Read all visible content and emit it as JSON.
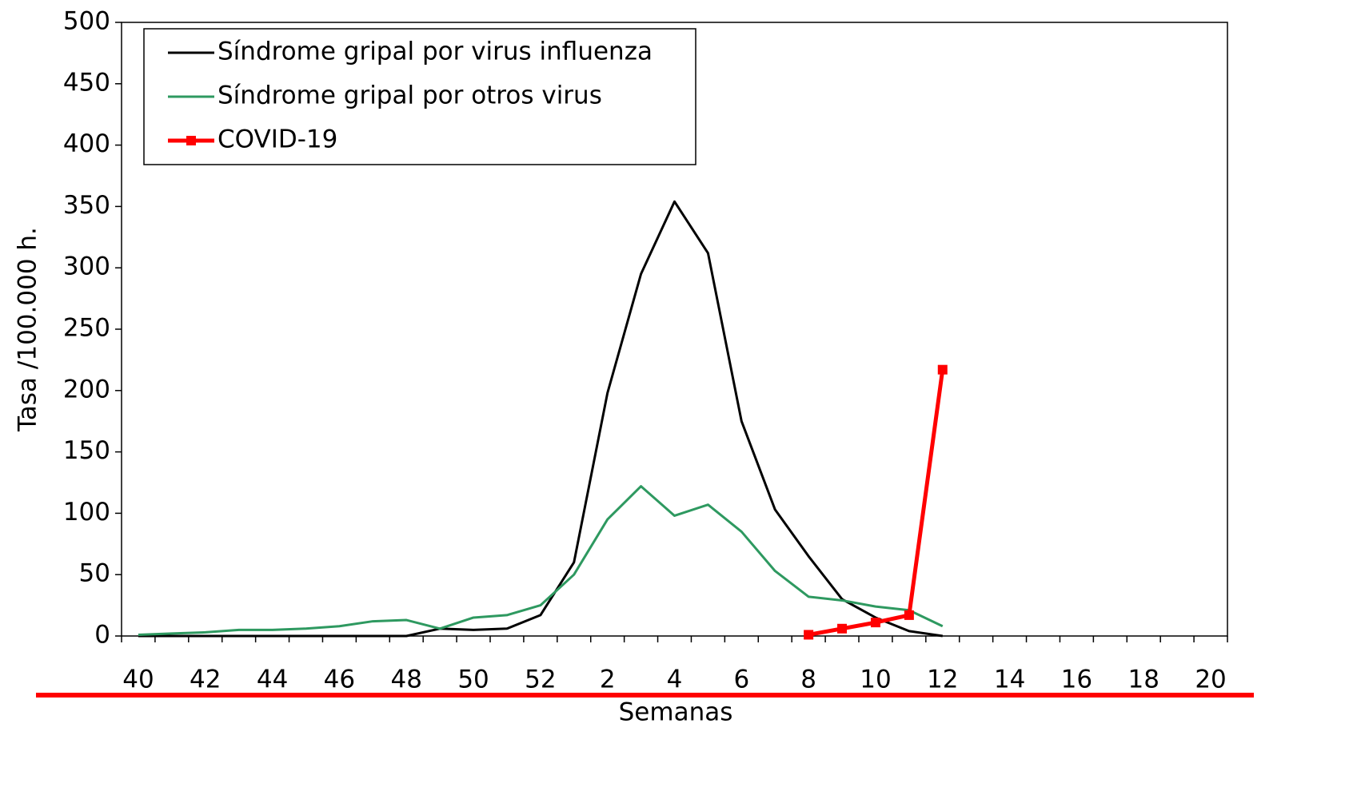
{
  "chart_data": {
    "type": "line",
    "xlabel": "Semanas",
    "ylabel": "Tasa /100.000 h.",
    "categories": [
      "40",
      null,
      "42",
      null,
      "44",
      null,
      "46",
      null,
      "48",
      null,
      "50",
      null,
      "52",
      null,
      "2",
      null,
      "4",
      null,
      "6",
      null,
      "8",
      null,
      "10",
      null,
      "12",
      null,
      "14",
      null,
      "16",
      null,
      "18",
      null,
      "20"
    ],
    "series": [
      {
        "name": "Síndrome gripal por virus influenza",
        "color": "#000000",
        "marker": false,
        "values": [
          0,
          0,
          0,
          0,
          0,
          0,
          0,
          0,
          0,
          6,
          5,
          6,
          17,
          60,
          198,
          295,
          354,
          312,
          175,
          103,
          65,
          30,
          15,
          4,
          0,
          null,
          null,
          null,
          null,
          null,
          null,
          null,
          null
        ]
      },
      {
        "name": "Síndrome gripal por otros virus",
        "color": "#2e9960",
        "marker": false,
        "values": [
          1,
          2,
          3,
          5,
          5,
          6,
          8,
          12,
          13,
          6,
          15,
          17,
          25,
          50,
          95,
          122,
          98,
          107,
          85,
          53,
          32,
          29,
          24,
          21,
          8,
          null,
          null,
          null,
          null,
          null,
          null,
          null,
          null
        ]
      },
      {
        "name": "COVID-19",
        "color": "#ff0000",
        "marker": true,
        "values": [
          null,
          null,
          null,
          null,
          null,
          null,
          null,
          null,
          null,
          null,
          null,
          null,
          null,
          null,
          null,
          null,
          null,
          null,
          null,
          null,
          1,
          6,
          11,
          17,
          217,
          null,
          null,
          null,
          null,
          null,
          null,
          null,
          null
        ]
      }
    ],
    "ylim": [
      0,
      500
    ],
    "yticks": [
      0,
      50,
      100,
      150,
      200,
      250,
      300,
      350,
      400,
      450,
      500
    ],
    "grid": false,
    "legend": "upper left"
  }
}
